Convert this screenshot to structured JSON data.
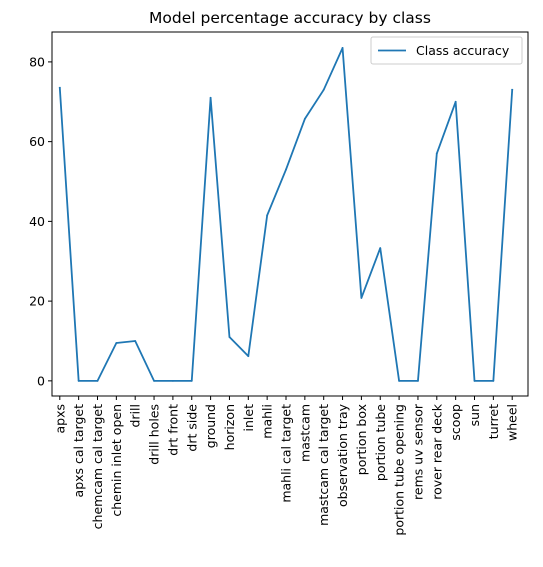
{
  "chart_data": {
    "type": "line",
    "title": "Model percentage accuracy by class",
    "xlabel": "",
    "ylabel": "",
    "categories": [
      "apxs",
      "apxs cal target",
      "chemcam cal target",
      "chemin inlet open",
      "drill",
      "drill holes",
      "drt front",
      "drt side",
      "ground",
      "horizon",
      "inlet",
      "mahli",
      "mahli cal target",
      "mastcam",
      "mastcam cal target",
      "observation tray",
      "portion box",
      "portion tube",
      "portion tube opening",
      "rems uv sensor",
      "rover rear deck",
      "scoop",
      "sun",
      "turret",
      "wheel"
    ],
    "series": [
      {
        "name": "Class accuracy",
        "color": "#1f77b4",
        "values": [
          73.5,
          0,
          0,
          9.5,
          10,
          0,
          0,
          0,
          71,
          11,
          6.2,
          41.5,
          53,
          65.7,
          73,
          83.5,
          20.8,
          33.3,
          0,
          0,
          57,
          70,
          0,
          0,
          73
        ]
      }
    ],
    "y_ticks": [
      0,
      20,
      40,
      60,
      80
    ],
    "ylim": [
      -3.8,
      87.5
    ],
    "legend": "upper right",
    "grid": false
  }
}
